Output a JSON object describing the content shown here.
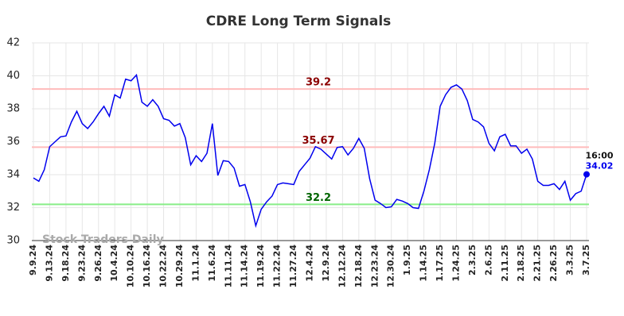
{
  "chart_data": {
    "type": "line",
    "title": "CDRE Long Term Signals",
    "categories": [
      "9.9.24",
      null,
      null,
      "9.13.24",
      null,
      null,
      "9.18.24",
      null,
      null,
      "9.23.24",
      null,
      null,
      "9.26.24",
      null,
      null,
      "10.4.24",
      null,
      null,
      "10.10.24",
      null,
      null,
      "10.16.24",
      null,
      null,
      "10.22.24",
      null,
      null,
      "10.29.24",
      null,
      null,
      "11.1.24",
      null,
      null,
      "11.6.24",
      null,
      null,
      "11.11.24",
      null,
      null,
      "11.14.24",
      null,
      null,
      "11.19.24",
      null,
      null,
      "11.22.24",
      null,
      null,
      "11.27.24",
      null,
      null,
      "12.4.24",
      null,
      null,
      "12.9.24",
      null,
      null,
      "12.12.24",
      null,
      null,
      "12.18.24",
      null,
      null,
      "12.23.24",
      null,
      null,
      "12.30.24",
      null,
      null,
      "1.9.25",
      null,
      null,
      "1.14.25",
      null,
      null,
      "1.17.25",
      null,
      null,
      "1.24.25",
      null,
      null,
      "2.3.25",
      null,
      null,
      "2.6.25",
      null,
      null,
      "2.11.25",
      null,
      null,
      "2.18.25",
      null,
      null,
      "2.21.25",
      null,
      null,
      "2.26.25",
      null,
      null,
      "3.3.25",
      null,
      null,
      "3.7.25"
    ],
    "values": [
      33.8,
      33.6,
      34.3,
      35.7,
      36.0,
      36.3,
      36.35,
      37.2,
      37.85,
      37.1,
      36.8,
      37.2,
      37.7,
      38.15,
      37.55,
      38.85,
      38.65,
      39.8,
      39.7,
      40.05,
      38.4,
      38.15,
      38.55,
      38.15,
      37.4,
      37.3,
      36.95,
      37.1,
      36.25,
      34.6,
      35.15,
      34.8,
      35.3,
      37.1,
      33.95,
      34.85,
      34.8,
      34.4,
      33.3,
      33.4,
      32.35,
      30.9,
      31.9,
      32.35,
      32.7,
      33.4,
      33.5,
      33.45,
      33.4,
      34.2,
      34.6,
      35.0,
      35.7,
      35.55,
      35.25,
      34.95,
      35.65,
      35.7,
      35.2,
      35.6,
      36.2,
      35.6,
      33.75,
      32.45,
      32.25,
      32.0,
      32.05,
      32.5,
      32.4,
      32.25,
      32.0,
      31.95,
      33.0,
      34.3,
      35.9,
      38.15,
      38.85,
      39.3,
      39.45,
      39.2,
      38.5,
      37.35,
      37.2,
      36.9,
      35.9,
      35.45,
      36.3,
      36.45,
      35.75,
      35.75,
      35.3,
      35.55,
      34.95,
      33.6,
      33.35,
      33.35,
      33.45,
      33.1,
      33.6,
      32.45,
      32.85,
      33.0,
      34.02
    ],
    "color": "#0000ee",
    "ylim": [
      30,
      42
    ],
    "yticks": [
      30,
      32,
      34,
      36,
      38,
      40,
      42
    ],
    "grid": true,
    "hlines": [
      {
        "value": 39.2,
        "color": "#ffbbbb",
        "label_color": "#8b0000"
      },
      {
        "value": 35.67,
        "color": "#ffbbbb",
        "label_color": "#8b0000"
      },
      {
        "value": 32.2,
        "color": "#88ee88",
        "label_color": "#006400"
      }
    ],
    "last_time": "16:00",
    "watermark": "Stock Traders Daily"
  }
}
